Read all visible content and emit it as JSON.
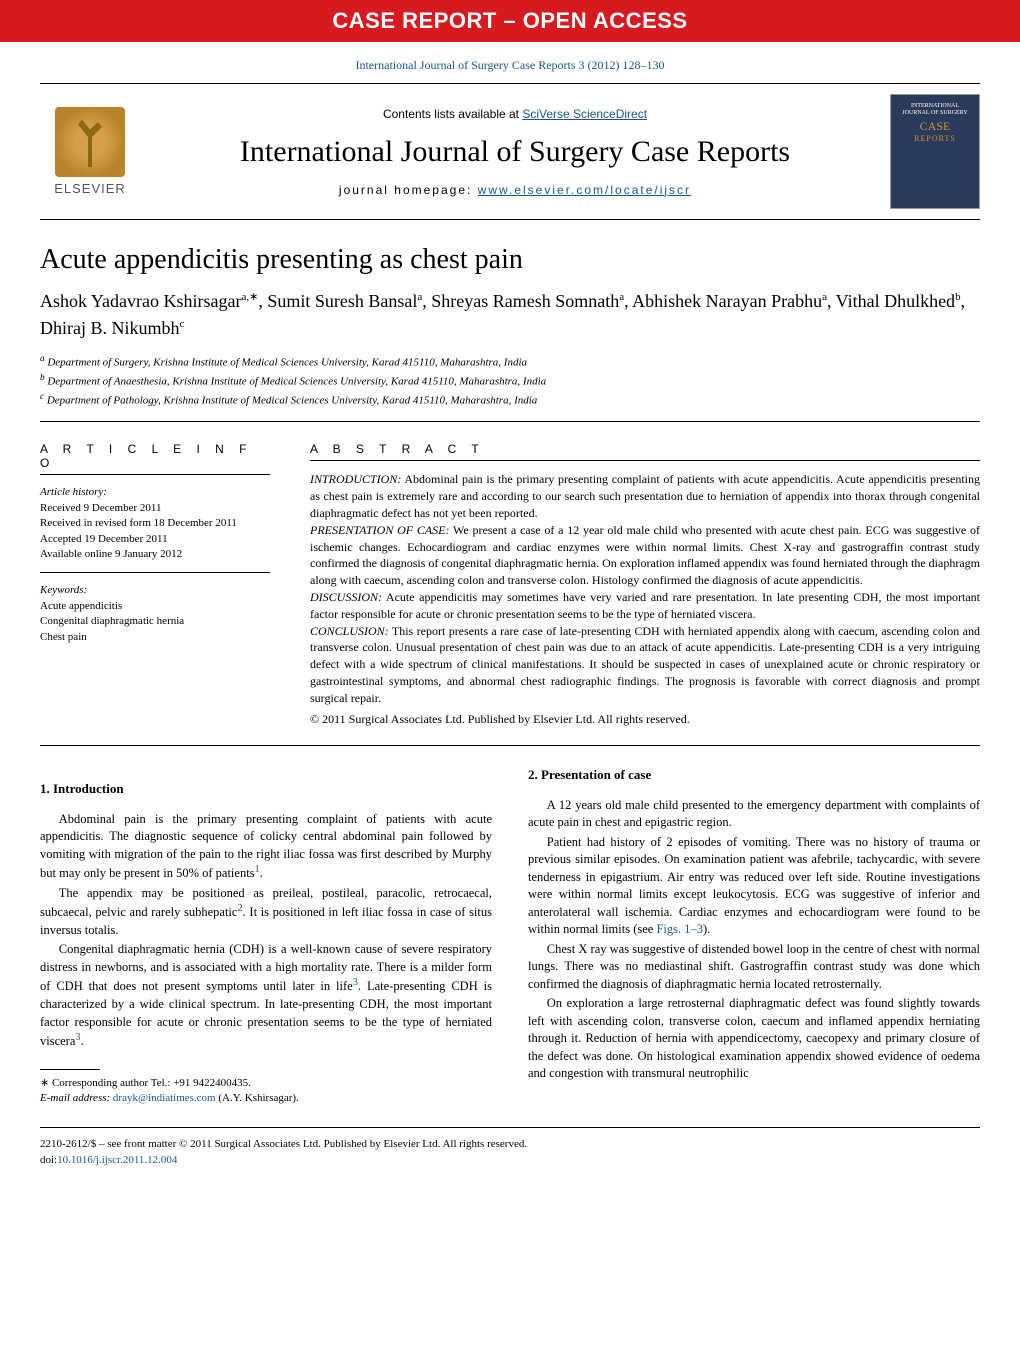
{
  "banner": "CASE REPORT – OPEN ACCESS",
  "citation": "International Journal of Surgery Case Reports 3 (2012) 128–130",
  "masthead": {
    "contents_prefix": "Contents lists available at ",
    "contents_link": "SciVerse ScienceDirect",
    "journal_name": "International Journal of Surgery Case Reports",
    "homepage_prefix": "journal homepage: ",
    "homepage_link": "www.elsevier.com/locate/ijscr",
    "publisher": "ELSEVIER",
    "cover_line1": "INTERNATIONAL",
    "cover_line2": "JOURNAL OF SURGERY",
    "cover_case": "CASE",
    "cover_reports": "REPORTS"
  },
  "title": "Acute appendicitis presenting as chest pain",
  "authors_html": "Ashok Yadavrao Kshirsagar<sup>a,∗</sup>, Sumit Suresh Bansal<sup>a</sup>, Shreyas Ramesh Somnath<sup>a</sup>, Abhishek Narayan Prabhu<sup>a</sup>, Vithal Dhulkhed<sup>b</sup>, Dhiraj B. Nikumbh<sup>c</sup>",
  "affiliations": {
    "a": "Department of Surgery, Krishna Institute of Medical Sciences University, Karad 415110, Maharashtra, India",
    "b": "Department of Anaesthesia, Krishna Institute of Medical Sciences University, Karad 415110, Maharashtra, India",
    "c": "Department of Pathology, Krishna Institute of Medical Sciences University, Karad 415110, Maharashtra, India"
  },
  "article_info": {
    "heading": "A R T I C L E   I N F O",
    "history_label": "Article history:",
    "received": "Received 9 December 2011",
    "revised": "Received in revised form 18 December 2011",
    "accepted": "Accepted 19 December 2011",
    "online": "Available online 9 January 2012",
    "keywords_label": "Keywords:",
    "keywords": [
      "Acute appendicitis",
      "Congenital diaphragmatic hernia",
      "Chest pain"
    ]
  },
  "abstract": {
    "heading": "A B S T R A C T",
    "intro_label": "INTRODUCTION:",
    "intro": " Abdominal pain is the primary presenting complaint of patients with acute appendicitis. Acute appendicitis presenting as chest pain is extremely rare and according to our search such presentation due to herniation of appendix into thorax through congenital diaphragmatic defect has not yet been reported.",
    "case_label": "PRESENTATION OF CASE:",
    "case": " We present a case of a 12 year old male child who presented with acute chest pain. ECG was suggestive of ischemic changes. Echocardiogram and cardiac enzymes were within normal limits. Chest X-ray and gastrograffin contrast study confirmed the diagnosis of congenital diaphragmatic hernia. On exploration inflamed appendix was found herniated through the diaphragm along with caecum, ascending colon and transverse colon. Histology confirmed the diagnosis of acute appendicitis.",
    "discussion_label": "DISCUSSION:",
    "discussion": " Acute appendicitis may sometimes have very varied and rare presentation. In late presenting CDH, the most important factor responsible for acute or chronic presentation seems to be the type of herniated viscera.",
    "conclusion_label": "CONCLUSION:",
    "conclusion": " This report presents a rare case of late-presenting CDH with herniated appendix along with caecum, ascending colon and transverse colon. Unusual presentation of chest pain was due to an attack of acute appendicitis. Late-presenting CDH is a very intriguing defect with a wide spectrum of clinical manifestations. It should be suspected in cases of unexplained acute or chronic respiratory or gastrointestinal symptoms, and abnormal chest radiographic findings. The prognosis is favorable with correct diagnosis and prompt surgical repair.",
    "copyright": "© 2011 Surgical Associates Ltd. Published by Elsevier Ltd. All rights reserved."
  },
  "body": {
    "s1_heading": "1.  Introduction",
    "s1_p1": "Abdominal pain is the primary presenting complaint of patients with acute appendicitis. The diagnostic sequence of colicky central abdominal pain followed by vomiting with migration of the pain to the right iliac fossa was first described by Murphy but may only be present in 50% of patients",
    "s1_p1_end": ".",
    "s1_p2": "The appendix may be positioned as preileal, postileal, paracolic, retrocaecal, subcaecal, pelvic and rarely subhepatic",
    "s1_p2_mid": ". It is positioned in left iliac fossa in case of situs inversus totalis.",
    "s1_p3": "Congenital diaphragmatic hernia (CDH) is a well-known cause of severe respiratory distress in newborns, and is associated with a high mortality rate. There is a milder form of CDH that does not present symptoms until later in life",
    "s1_p3_mid": ". Late-presenting CDH is characterized by a wide clinical spectrum. In late-presenting CDH, the most important factor responsible for acute or chronic presentation seems to be the type of herniated viscera",
    "s1_p3_end": ".",
    "s2_heading": "2.  Presentation of case",
    "s2_p1": "A 12 years old male child presented to the emergency department with complaints of acute pain in chest and epigastric region.",
    "s2_p2a": "Patient had history of 2 episodes of vomiting. There was no history of trauma or previous similar episodes. On examination patient was afebrile, tachycardic, with severe tenderness in epigastrium. Air entry was reduced over left side. Routine investigations were within normal limits except leukocytosis. ECG was suggestive of inferior and anterolateral wall ischemia. Cardiac enzymes and echocardiogram were found to be within normal limits (see ",
    "figs_link": "Figs. 1–3",
    "s2_p2b": ").",
    "s2_p3": "Chest X ray was suggestive of distended bowel loop in the centre of chest with normal lungs. There was no mediastinal shift. Gastrograffin contrast study was done which confirmed the diagnosis of diaphragmatic hernia located retrosternally.",
    "s2_p4": "On exploration a large retrosternal diaphragmatic defect was found slightly towards left with ascending colon, transverse colon, caecum and inflamed appendix herniating through it. Reduction of hernia with appendicectomy, caecopexy and primary closure of the defect was done. On histological examination appendix showed evidence of oedema and congestion with transmural neutrophilic"
  },
  "footnotes": {
    "corr": "∗ Corresponding author Tel.: +91 9422400435.",
    "email_label": "E-mail address: ",
    "email": "drayk@indiatimes.com",
    "email_suffix": " (A.Y. Kshirsagar)."
  },
  "bottom": {
    "line1": "2210-2612/$ – see front matter © 2011 Surgical Associates Ltd. Published by Elsevier Ltd. All rights reserved.",
    "doi_prefix": "doi:",
    "doi": "10.1016/j.ijscr.2011.12.004"
  },
  "refs": {
    "r1": "1",
    "r2": "2",
    "r3": "3"
  }
}
